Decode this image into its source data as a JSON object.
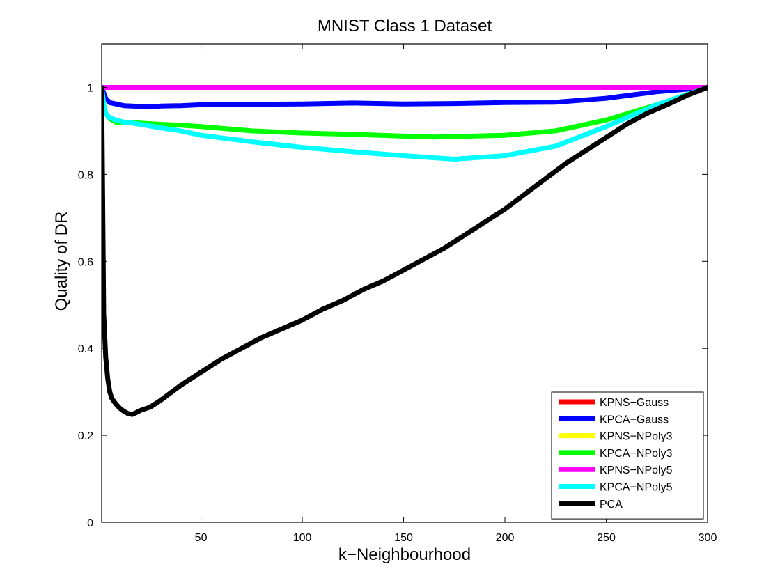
{
  "chart_data": {
    "type": "line",
    "title": "MNIST Class 1 Dataset",
    "xlabel": "k−Neighbourhood",
    "ylabel": "Quality of DR",
    "xlim": [
      1,
      300
    ],
    "ylim": [
      0,
      1.1
    ],
    "xticks": [
      50,
      100,
      150,
      200,
      250,
      300
    ],
    "xtick_labels": [
      "50",
      "100",
      "150",
      "200",
      "250",
      "300"
    ],
    "yticks": [
      0,
      0.2,
      0.4,
      0.6,
      0.8,
      1
    ],
    "ytick_labels": [
      "0",
      "0.2",
      "0.4",
      "0.6",
      "0.8",
      "1"
    ],
    "grid": false,
    "legend_position": "bottom-right",
    "series": [
      {
        "name": "KPNS−Gauss",
        "color": "#ff0000",
        "x": [
          1,
          300
        ],
        "y": [
          1.0,
          1.0
        ]
      },
      {
        "name": "KPCA−Gauss",
        "color": "#0000ff",
        "x": [
          1,
          3,
          5,
          8,
          12,
          16,
          20,
          25,
          30,
          40,
          50,
          75,
          100,
          125,
          150,
          175,
          200,
          225,
          250,
          275,
          300
        ],
        "y": [
          1.0,
          0.975,
          0.965,
          0.962,
          0.958,
          0.957,
          0.956,
          0.955,
          0.957,
          0.958,
          0.96,
          0.961,
          0.962,
          0.964,
          0.962,
          0.963,
          0.965,
          0.966,
          0.975,
          0.99,
          1.0
        ]
      },
      {
        "name": "KPNS−NPoly3",
        "color": "#ffff00",
        "x": [
          1,
          300
        ],
        "y": [
          1.0,
          1.0
        ]
      },
      {
        "name": "KPCA−NPoly3",
        "color": "#00ff00",
        "x": [
          1,
          2,
          3,
          5,
          8,
          12,
          16,
          20,
          30,
          40,
          50,
          75,
          100,
          125,
          150,
          165,
          175,
          200,
          225,
          250,
          275,
          300
        ],
        "y": [
          1.0,
          0.96,
          0.94,
          0.928,
          0.92,
          0.92,
          0.919,
          0.918,
          0.915,
          0.913,
          0.91,
          0.9,
          0.895,
          0.892,
          0.888,
          0.886,
          0.887,
          0.89,
          0.9,
          0.925,
          0.96,
          1.0
        ]
      },
      {
        "name": "KPNS−NPoly5",
        "color": "#ff00ff",
        "x": [
          1,
          300
        ],
        "y": [
          1.0,
          1.0
        ]
      },
      {
        "name": "KPCA−NPoly5",
        "color": "#00ffff",
        "x": [
          1,
          2,
          3,
          5,
          8,
          12,
          16,
          20,
          30,
          40,
          50,
          75,
          100,
          125,
          150,
          175,
          200,
          225,
          250,
          275,
          300
        ],
        "y": [
          1.0,
          0.96,
          0.94,
          0.93,
          0.925,
          0.92,
          0.918,
          0.915,
          0.907,
          0.9,
          0.89,
          0.875,
          0.862,
          0.852,
          0.843,
          0.835,
          0.843,
          0.865,
          0.91,
          0.96,
          1.0
        ]
      },
      {
        "name": "PCA",
        "color": "#000000",
        "x": [
          1,
          2,
          3,
          4,
          5,
          6,
          8,
          10,
          12,
          14,
          16,
          18,
          20,
          25,
          30,
          40,
          50,
          60,
          70,
          80,
          90,
          100,
          110,
          120,
          130,
          140,
          150,
          160,
          170,
          180,
          190,
          200,
          210,
          220,
          230,
          240,
          250,
          260,
          270,
          280,
          290,
          300
        ],
        "y": [
          1.0,
          0.48,
          0.38,
          0.33,
          0.3,
          0.285,
          0.272,
          0.262,
          0.255,
          0.25,
          0.248,
          0.252,
          0.257,
          0.265,
          0.28,
          0.315,
          0.345,
          0.375,
          0.4,
          0.425,
          0.445,
          0.465,
          0.49,
          0.51,
          0.535,
          0.555,
          0.58,
          0.605,
          0.63,
          0.66,
          0.69,
          0.72,
          0.755,
          0.79,
          0.825,
          0.855,
          0.885,
          0.915,
          0.94,
          0.96,
          0.982,
          1.0
        ]
      }
    ]
  }
}
